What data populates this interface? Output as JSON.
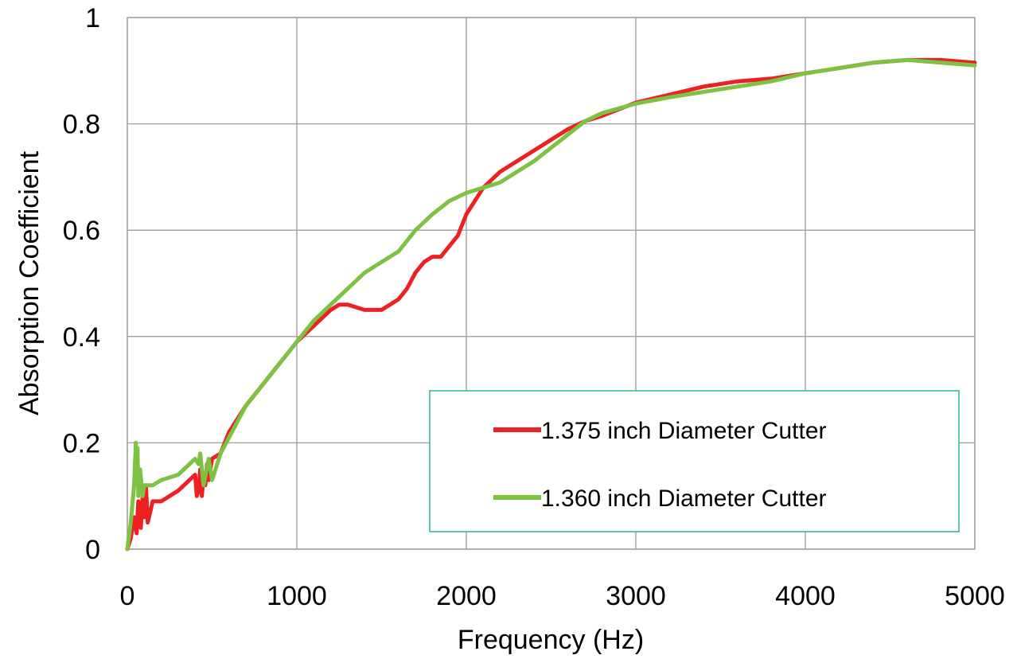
{
  "chart_data": {
    "type": "line",
    "xlabel": "Frequency (Hz)",
    "ylabel": "Absorption Coefficient",
    "xlim": [
      0,
      5000
    ],
    "ylim": [
      0,
      1
    ],
    "xticks": [
      "0",
      "1000",
      "2000",
      "3000",
      "4000",
      "5000"
    ],
    "yticks": [
      "0",
      "0.2",
      "0.4",
      "0.6",
      "0.8",
      "1"
    ],
    "grid": true,
    "legend_position": "bottom-right",
    "series": [
      {
        "name": "1.375 inch Diameter Cutter",
        "color": "#ED2124",
        "x": [
          0,
          20,
          40,
          55,
          65,
          80,
          90,
          100,
          110,
          120,
          135,
          150,
          200,
          300,
          400,
          410,
          420,
          430,
          440,
          450,
          460,
          470,
          480,
          500,
          550,
          600,
          700,
          800,
          900,
          1000,
          1100,
          1200,
          1250,
          1300,
          1400,
          1500,
          1550,
          1600,
          1650,
          1700,
          1750,
          1800,
          1850,
          1900,
          1950,
          2000,
          2100,
          2200,
          2300,
          2400,
          2500,
          2600,
          2700,
          2800,
          3000,
          3200,
          3400,
          3600,
          3800,
          4000,
          4200,
          4400,
          4600,
          4700,
          4800,
          5000
        ],
        "y": [
          0,
          0.02,
          0.06,
          0.03,
          0.09,
          0.04,
          0.1,
          0.06,
          0.12,
          0.05,
          0.07,
          0.09,
          0.09,
          0.11,
          0.14,
          0.1,
          0.11,
          0.15,
          0.1,
          0.14,
          0.12,
          0.16,
          0.13,
          0.17,
          0.18,
          0.22,
          0.27,
          0.31,
          0.35,
          0.39,
          0.42,
          0.45,
          0.46,
          0.46,
          0.45,
          0.45,
          0.46,
          0.47,
          0.49,
          0.52,
          0.54,
          0.55,
          0.55,
          0.57,
          0.59,
          0.63,
          0.68,
          0.71,
          0.73,
          0.75,
          0.77,
          0.79,
          0.805,
          0.815,
          0.84,
          0.855,
          0.87,
          0.88,
          0.885,
          0.895,
          0.905,
          0.915,
          0.92,
          0.92,
          0.92,
          0.915
        ]
      },
      {
        "name": "1.360 inch Diameter Cutter",
        "color": "#7DC242",
        "x": [
          0,
          20,
          40,
          50,
          55,
          60,
          65,
          75,
          90,
          100,
          150,
          200,
          300,
          400,
          420,
          430,
          450,
          480,
          500,
          550,
          600,
          700,
          800,
          900,
          1000,
          1100,
          1200,
          1300,
          1400,
          1500,
          1600,
          1700,
          1800,
          1900,
          2000,
          2100,
          2200,
          2300,
          2400,
          2500,
          2600,
          2700,
          2800,
          3000,
          3200,
          3400,
          3600,
          3800,
          4000,
          4200,
          4400,
          4600,
          4800,
          5000
        ],
        "y": [
          0,
          0.05,
          0.12,
          0.2,
          0.16,
          0.19,
          0.1,
          0.15,
          0.1,
          0.12,
          0.12,
          0.13,
          0.14,
          0.17,
          0.16,
          0.18,
          0.12,
          0.17,
          0.13,
          0.18,
          0.21,
          0.27,
          0.31,
          0.35,
          0.39,
          0.43,
          0.46,
          0.49,
          0.52,
          0.54,
          0.56,
          0.6,
          0.63,
          0.655,
          0.67,
          0.68,
          0.69,
          0.71,
          0.73,
          0.755,
          0.78,
          0.805,
          0.82,
          0.838,
          0.85,
          0.86,
          0.87,
          0.88,
          0.895,
          0.905,
          0.915,
          0.92,
          0.915,
          0.91
        ]
      }
    ]
  }
}
